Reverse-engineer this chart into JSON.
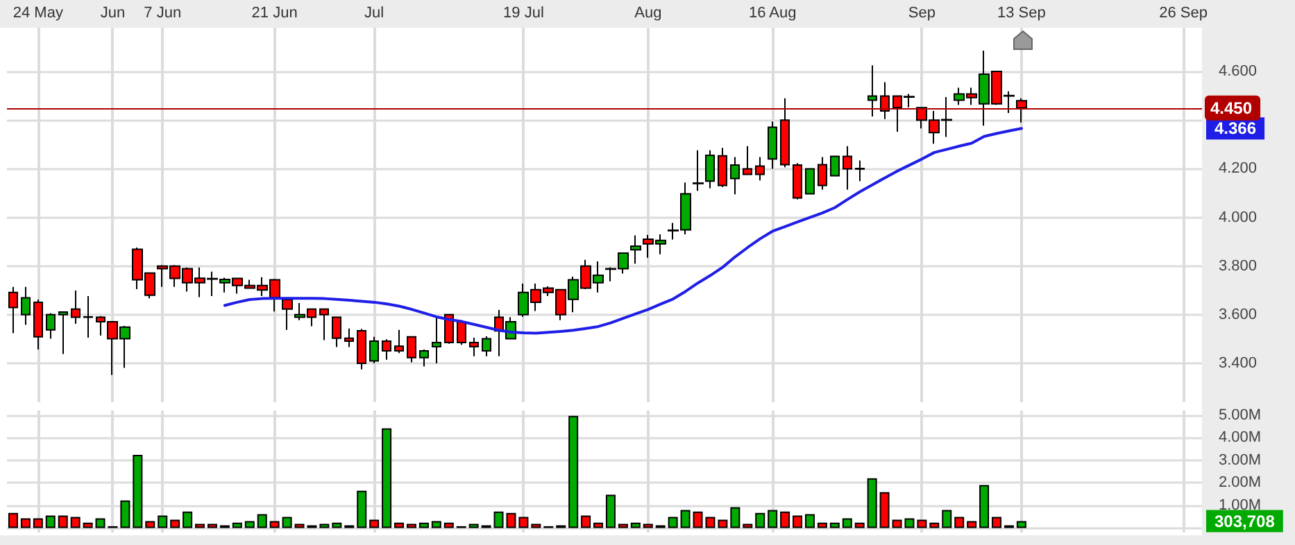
{
  "chart_data": [
    {
      "type": "candlestick",
      "categories": [
        null,
        null,
        "24 May",
        null,
        null,
        null,
        null,
        null,
        "Jun",
        null,
        null,
        null,
        "7 Jun",
        null,
        null,
        null,
        null,
        null,
        null,
        null,
        null,
        "21 Jun",
        null,
        null,
        null,
        null,
        null,
        null,
        null,
        "Jul",
        null,
        null,
        null,
        null,
        null,
        null,
        null,
        null,
        null,
        null,
        null,
        "19 Jul",
        null,
        null,
        null,
        null,
        null,
        null,
        null,
        null,
        null,
        "Aug",
        null,
        null,
        null,
        null,
        null,
        null,
        null,
        null,
        null,
        "16 Aug",
        null,
        null,
        null,
        null,
        null,
        null,
        null,
        null,
        null,
        null,
        null,
        "Sep",
        null,
        null,
        null,
        null,
        null,
        null,
        null,
        "13 Sep",
        null,
        null,
        null,
        null,
        null,
        null,
        null,
        null,
        null,
        null,
        null,
        null,
        "26 Sep",
        null
      ],
      "series": [
        {
          "type": "candlestick",
          "ohlc": [
            [
              3.691,
              3.714,
              3.524,
              3.629
            ],
            [
              3.6,
              3.714,
              3.558,
              3.669
            ],
            [
              3.651,
              3.662,
              3.457,
              3.509
            ],
            [
              3.537,
              3.606,
              3.501,
              3.6
            ],
            [
              3.6,
              3.611,
              3.438,
              3.611
            ],
            [
              3.623,
              3.699,
              3.562,
              3.589
            ],
            [
              3.591,
              3.676,
              3.505,
              3.589
            ],
            [
              3.589,
              3.594,
              3.514,
              3.571
            ],
            [
              3.571,
              3.571,
              3.352,
              3.501
            ],
            [
              3.501,
              3.554,
              3.381,
              3.549
            ],
            [
              3.869,
              3.876,
              3.705,
              3.743
            ],
            [
              3.771,
              3.771,
              3.667,
              3.68
            ],
            [
              3.8,
              3.804,
              3.714,
              3.789
            ],
            [
              3.8,
              3.804,
              3.714,
              3.749
            ],
            [
              3.789,
              3.794,
              3.695,
              3.731
            ],
            [
              3.75,
              3.794,
              3.672,
              3.731
            ],
            [
              3.748,
              3.777,
              3.676,
              3.746
            ],
            [
              3.731,
              3.752,
              3.691,
              3.745
            ],
            [
              3.749,
              3.752,
              3.686,
              3.72
            ],
            [
              3.72,
              3.743,
              3.709,
              3.709
            ],
            [
              3.72,
              3.754,
              3.676,
              3.701
            ],
            [
              3.743,
              3.747,
              3.613,
              3.67
            ],
            [
              3.662,
              3.67,
              3.537,
              3.623
            ],
            [
              3.589,
              3.648,
              3.577,
              3.6
            ],
            [
              3.623,
              3.623,
              3.552,
              3.589
            ],
            [
              3.623,
              3.623,
              3.495,
              3.6
            ],
            [
              3.589,
              3.589,
              3.467,
              3.503
            ],
            [
              3.503,
              3.543,
              3.467,
              3.491
            ],
            [
              3.534,
              3.541,
              3.375,
              3.4
            ],
            [
              3.41,
              3.509,
              3.4,
              3.491
            ],
            [
              3.491,
              3.499,
              3.415,
              3.451
            ],
            [
              3.47,
              3.537,
              3.442,
              3.451
            ],
            [
              3.509,
              3.509,
              3.404,
              3.423
            ],
            [
              3.423,
              3.457,
              3.387,
              3.451
            ],
            [
              3.468,
              3.586,
              3.4,
              3.485
            ],
            [
              3.6,
              3.6,
              3.48,
              3.485
            ],
            [
              3.571,
              3.577,
              3.476,
              3.485
            ],
            [
              3.485,
              3.505,
              3.429,
              3.468
            ],
            [
              3.451,
              3.511,
              3.429,
              3.501
            ],
            [
              3.589,
              3.619,
              3.429,
              3.533
            ],
            [
              3.501,
              3.589,
              3.501,
              3.571
            ],
            [
              3.6,
              3.728,
              3.591,
              3.691
            ],
            [
              3.703,
              3.728,
              3.615,
              3.651
            ],
            [
              3.709,
              3.716,
              3.676,
              3.691
            ],
            [
              3.703,
              3.703,
              3.577,
              3.6
            ],
            [
              3.663,
              3.756,
              3.61,
              3.743
            ],
            [
              3.8,
              3.825,
              3.705,
              3.709
            ],
            [
              3.731,
              3.819,
              3.691,
              3.762
            ],
            [
              3.787,
              3.795,
              3.737,
              3.789
            ],
            [
              3.789,
              3.853,
              3.769,
              3.853
            ],
            [
              3.867,
              3.926,
              3.81,
              3.882
            ],
            [
              3.91,
              3.928,
              3.834,
              3.891
            ],
            [
              3.891,
              3.93,
              3.848,
              3.905
            ],
            [
              3.945,
              3.977,
              3.909,
              3.947
            ],
            [
              3.949,
              4.143,
              3.93,
              4.097
            ],
            [
              4.139,
              4.276,
              4.109,
              4.141
            ],
            [
              4.149,
              4.276,
              4.12,
              4.255
            ],
            [
              4.253,
              4.286,
              4.125,
              4.131
            ],
            [
              4.16,
              4.248,
              4.095,
              4.215
            ],
            [
              4.2,
              4.293,
              4.175,
              4.177
            ],
            [
              4.211,
              4.248,
              4.152,
              4.177
            ],
            [
              4.24,
              4.394,
              4.2,
              4.371
            ],
            [
              4.4,
              4.49,
              4.206,
              4.217
            ],
            [
              4.215,
              4.223,
              4.074,
              4.08
            ],
            [
              4.097,
              4.2,
              4.097,
              4.2
            ],
            [
              4.217,
              4.248,
              4.114,
              4.131
            ],
            [
              4.171,
              4.251,
              4.171,
              4.251
            ],
            [
              4.251,
              4.293,
              4.114,
              4.2
            ],
            [
              4.199,
              4.234,
              4.149,
              4.201
            ],
            [
              4.482,
              4.625,
              4.415,
              4.499
            ],
            [
              4.499,
              4.556,
              4.404,
              4.438
            ],
            [
              4.499,
              4.499,
              4.352,
              4.451
            ],
            [
              4.495,
              4.508,
              4.453,
              4.497
            ],
            [
              4.451,
              4.451,
              4.366,
              4.4
            ],
            [
              4.4,
              4.438,
              4.303,
              4.349
            ],
            [
              4.4,
              4.495,
              4.331,
              4.402
            ],
            [
              4.482,
              4.533,
              4.463,
              4.508
            ],
            [
              4.508,
              4.533,
              4.463,
              4.493
            ],
            [
              4.467,
              4.686,
              4.377,
              4.589
            ],
            [
              4.6,
              4.6,
              4.463,
              4.467
            ],
            [
              4.501,
              4.518,
              4.429,
              4.499
            ],
            [
              4.48,
              4.49,
              4.39,
              4.45
            ],
            null,
            null,
            null,
            null,
            null,
            null,
            null,
            null,
            null,
            null,
            null,
            null,
            null,
            null
          ],
          "colors": [
            "#ff0000",
            "#00aa00",
            "#ff0000",
            "#00aa00",
            "#00aa00",
            "#ff0000",
            "#ff0000",
            "#ff0000",
            "#ff0000",
            "#00aa00",
            "#ff0000",
            "#ff0000",
            "#ff0000",
            "#ff0000",
            "#ff0000",
            "#ff0000",
            "#ff0000",
            "#00aa00",
            "#ff0000",
            "#ff0000",
            "#ff0000",
            "#ff0000",
            "#ff0000",
            "#00aa00",
            "#ff0000",
            "#ff0000",
            "#ff0000",
            "#ff0000",
            "#ff0000",
            "#00aa00",
            "#ff0000",
            "#ff0000",
            "#ff0000",
            "#00aa00",
            "#00aa00",
            "#ff0000",
            "#ff0000",
            "#ff0000",
            "#00aa00",
            "#ff0000",
            "#00aa00",
            "#00aa00",
            "#ff0000",
            "#ff0000",
            "#ff0000",
            "#00aa00",
            "#ff0000",
            "#00aa00",
            "#00aa00",
            "#00aa00",
            "#00aa00",
            "#ff0000",
            "#00aa00",
            "#00aa00",
            "#00aa00",
            "#00aa00",
            "#00aa00",
            "#ff0000",
            "#00aa00",
            "#ff0000",
            "#ff0000",
            "#00aa00",
            "#ff0000",
            "#ff0000",
            "#00aa00",
            "#ff0000",
            "#00aa00",
            "#ff0000",
            "#00aa00",
            "#00aa00",
            "#ff0000",
            "#ff0000",
            "#00aa00",
            "#ff0000",
            "#ff0000",
            "#00aa00",
            "#00aa00",
            "#ff0000",
            "#00aa00",
            "#ff0000",
            "#ff0000",
            "#ff0000",
            null,
            null,
            null,
            null,
            null,
            null,
            null,
            null,
            null,
            null,
            null,
            null,
            null,
            null
          ]
        },
        {
          "type": "line",
          "color": "#1e1ee6",
          "values": [
            null,
            null,
            null,
            null,
            null,
            null,
            null,
            null,
            null,
            null,
            null,
            null,
            null,
            null,
            null,
            null,
            null,
            3.638,
            3.651,
            3.662,
            3.666,
            3.667,
            3.667,
            3.667,
            3.667,
            3.666,
            3.663,
            3.659,
            3.655,
            3.651,
            3.644,
            3.635,
            3.622,
            3.607,
            3.591,
            3.58,
            3.572,
            3.56,
            3.548,
            3.536,
            3.528,
            3.525,
            3.524,
            3.527,
            3.531,
            3.536,
            3.543,
            3.551,
            3.566,
            3.585,
            3.603,
            3.621,
            3.643,
            3.664,
            3.695,
            3.73,
            3.761,
            3.795,
            3.838,
            3.876,
            3.912,
            3.943,
            3.962,
            3.981,
            4.0,
            4.018,
            4.04,
            4.073,
            4.105,
            4.133,
            4.162,
            4.19,
            4.215,
            4.24,
            4.267,
            4.28,
            4.293,
            4.305,
            4.333,
            4.345,
            4.356,
            4.366,
            null,
            null,
            null,
            null,
            null,
            null,
            null,
            null,
            null,
            null,
            null,
            null,
            null,
            null
          ]
        }
      ],
      "annotations": [
        "4.366"
      ],
      "ylim": [
        3.24,
        4.78
      ],
      "yticks": [
        {
          "value": 3.4,
          "label": "3.400"
        },
        {
          "value": 3.6,
          "label": "3.600"
        },
        {
          "value": 3.8,
          "label": "3.800"
        },
        {
          "value": 4.0,
          "label": "4.000"
        },
        {
          "value": 4.2,
          "label": "4.200"
        },
        {
          "value": 4.4,
          "label": null
        },
        {
          "value": 4.6,
          "label": "4.600"
        }
      ],
      "grid": true,
      "ref_lines": [
        {
          "axis": "y",
          "value": 4.45,
          "label": "4.450",
          "color": "#b00000"
        }
      ]
    },
    {
      "type": "bar",
      "categories": [
        null,
        null,
        null,
        null,
        null,
        null,
        null,
        null,
        null,
        null,
        null,
        null,
        null,
        null,
        null,
        null,
        null,
        null,
        null,
        null,
        null,
        null,
        null,
        null,
        null,
        null,
        null,
        null,
        null,
        null,
        null,
        null,
        null,
        null,
        null,
        null,
        null,
        null,
        null,
        null,
        null,
        null,
        null,
        null,
        null,
        null,
        null,
        null,
        null,
        null,
        null,
        null,
        null,
        null,
        null,
        null,
        null,
        null,
        null,
        null,
        null,
        null,
        null,
        null,
        null,
        null,
        null,
        null,
        null,
        null,
        null,
        null,
        null,
        null,
        null,
        null,
        null,
        null,
        null,
        null,
        null,
        null,
        null,
        null,
        null,
        null,
        null,
        null,
        null,
        null,
        null,
        null,
        null,
        null,
        null,
        null
      ],
      "values": [
        670000,
        430000,
        430000,
        550000,
        550000,
        490000,
        240000,
        430000,
        80000,
        1220000,
        3240000,
        310000,
        550000,
        370000,
        730000,
        180000,
        180000,
        120000,
        240000,
        310000,
        610000,
        310000,
        490000,
        180000,
        120000,
        180000,
        240000,
        120000,
        1650000,
        370000,
        4410000,
        240000,
        180000,
        240000,
        310000,
        240000,
        80000,
        180000,
        120000,
        730000,
        670000,
        490000,
        180000,
        80000,
        120000,
        4960000,
        550000,
        240000,
        1470000,
        180000,
        240000,
        180000,
        120000,
        490000,
        800000,
        730000,
        490000,
        370000,
        920000,
        180000,
        670000,
        800000,
        730000,
        550000,
        610000,
        240000,
        240000,
        430000,
        240000,
        2200000,
        1590000,
        370000,
        430000,
        370000,
        240000,
        800000,
        490000,
        310000,
        1900000,
        490000,
        120000,
        303708,
        null,
        null,
        null,
        null,
        null,
        null,
        null,
        null,
        null,
        null,
        null,
        null,
        null,
        null
      ],
      "annotations": [
        "303,708"
      ],
      "colors": [
        "#ff0000",
        "#ff0000",
        "#ff0000",
        "#00aa00",
        "#ff0000",
        "#ff0000",
        "#ff0000",
        "#00aa00",
        "#ff0000",
        "#00aa00",
        "#00aa00",
        "#ff0000",
        "#00aa00",
        "#ff0000",
        "#00aa00",
        "#ff0000",
        "#ff0000",
        "#ff0000",
        "#00aa00",
        "#00aa00",
        "#00aa00",
        "#ff0000",
        "#00aa00",
        "#ff0000",
        "#ff0000",
        "#00aa00",
        "#00aa00",
        "#ff0000",
        "#00aa00",
        "#ff0000",
        "#00aa00",
        "#ff0000",
        "#ff0000",
        "#00aa00",
        "#00aa00",
        "#ff0000",
        "#ff0000",
        "#00aa00",
        "#ff0000",
        "#00aa00",
        "#ff0000",
        "#ff0000",
        "#ff0000",
        "#ff0000",
        "#00aa00",
        "#00aa00",
        "#ff0000",
        "#ff0000",
        "#00aa00",
        "#ff0000",
        "#00aa00",
        "#ff0000",
        "#ff0000",
        "#00aa00",
        "#00aa00",
        "#ff0000",
        "#ff0000",
        "#ff0000",
        "#00aa00",
        "#ff0000",
        "#00aa00",
        "#00aa00",
        "#ff0000",
        "#ff0000",
        "#00aa00",
        "#ff0000",
        "#00aa00",
        "#00aa00",
        "#ff0000",
        "#00aa00",
        "#ff0000",
        "#ff0000",
        "#00aa00",
        "#ff0000",
        "#ff0000",
        "#00aa00",
        "#ff0000",
        "#ff0000",
        "#00aa00",
        "#ff0000",
        "#ff0000",
        "#00aa00",
        null,
        null,
        null,
        null,
        null,
        null,
        null,
        null,
        null,
        null,
        null,
        null,
        null,
        null
      ],
      "ylim": [
        -200000,
        5200000
      ],
      "yticks": [
        {
          "value": 0,
          "label": null
        },
        {
          "value": 1000000,
          "label": "1.00M"
        },
        {
          "value": 2000000,
          "label": "2.00M"
        },
        {
          "value": 3000000,
          "label": "3.00M"
        },
        {
          "value": 4000000,
          "label": "4.00M"
        },
        {
          "value": 5000000,
          "label": "5.00M"
        }
      ],
      "grid": true,
      "tick_labels": "y"
    }
  ]
}
